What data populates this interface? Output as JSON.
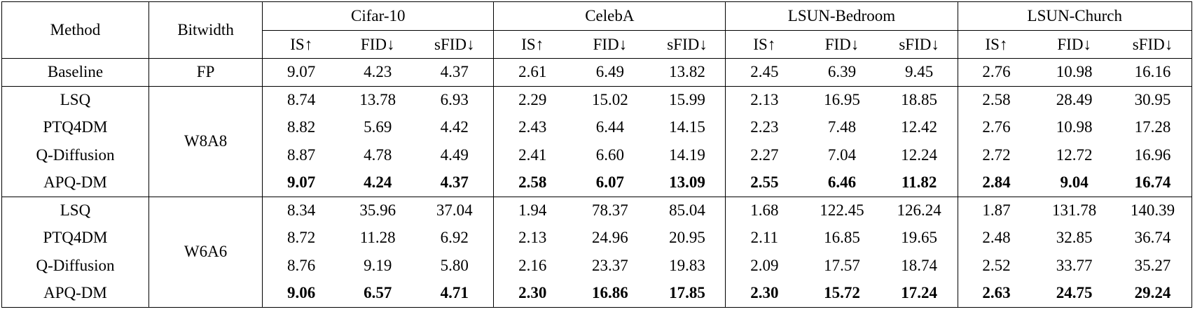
{
  "headers": {
    "method": "Method",
    "bitwidth": "Bitwidth",
    "datasets": [
      "Cifar-10",
      "CelebA",
      "LSUN-Bedroom",
      "LSUN-Church"
    ],
    "metrics": [
      "IS↑",
      "FID↓",
      "sFID↓"
    ]
  },
  "baseline": {
    "method": "Baseline",
    "bitwidth": "FP",
    "values": [
      "9.07",
      "4.23",
      "4.37",
      "2.61",
      "6.49",
      "13.82",
      "2.45",
      "6.39",
      "9.45",
      "2.76",
      "10.98",
      "16.16"
    ]
  },
  "groups": [
    {
      "bitwidth": "W8A8",
      "rows": [
        {
          "method": "LSQ",
          "values": [
            "8.74",
            "13.78",
            "6.93",
            "2.29",
            "15.02",
            "15.99",
            "2.13",
            "16.95",
            "18.85",
            "2.58",
            "28.49",
            "30.95"
          ]
        },
        {
          "method": "PTQ4DM",
          "values": [
            "8.82",
            "5.69",
            "4.42",
            "2.43",
            "6.44",
            "14.15",
            "2.23",
            "7.48",
            "12.42",
            "2.76",
            "10.98",
            "17.28"
          ]
        },
        {
          "method": "Q-Diffusion",
          "values": [
            "8.87",
            "4.78",
            "4.49",
            "2.41",
            "6.60",
            "14.19",
            "2.27",
            "7.04",
            "12.24",
            "2.72",
            "12.72",
            "16.96"
          ]
        },
        {
          "method": "APQ-DM",
          "values": [
            "9.07",
            "4.24",
            "4.37",
            "2.58",
            "6.07",
            "13.09",
            "2.55",
            "6.46",
            "11.82",
            "2.84",
            "9.04",
            "16.74"
          ]
        }
      ]
    },
    {
      "bitwidth": "W6A6",
      "rows": [
        {
          "method": "LSQ",
          "values": [
            "8.34",
            "35.96",
            "37.04",
            "1.94",
            "78.37",
            "85.04",
            "1.68",
            "122.45",
            "126.24",
            "1.87",
            "131.78",
            "140.39"
          ]
        },
        {
          "method": "PTQ4DM",
          "values": [
            "8.72",
            "11.28",
            "6.92",
            "2.13",
            "24.96",
            "20.95",
            "2.11",
            "16.85",
            "19.65",
            "2.48",
            "32.85",
            "36.74"
          ]
        },
        {
          "method": "Q-Diffusion",
          "values": [
            "8.76",
            "9.19",
            "5.80",
            "2.16",
            "23.37",
            "19.83",
            "2.09",
            "17.57",
            "18.74",
            "2.52",
            "33.77",
            "35.27"
          ]
        },
        {
          "method": "APQ-DM",
          "values": [
            "9.06",
            "6.57",
            "4.71",
            "2.30",
            "16.86",
            "17.85",
            "2.30",
            "15.72",
            "17.24",
            "2.63",
            "24.75",
            "29.24"
          ]
        }
      ]
    }
  ]
}
